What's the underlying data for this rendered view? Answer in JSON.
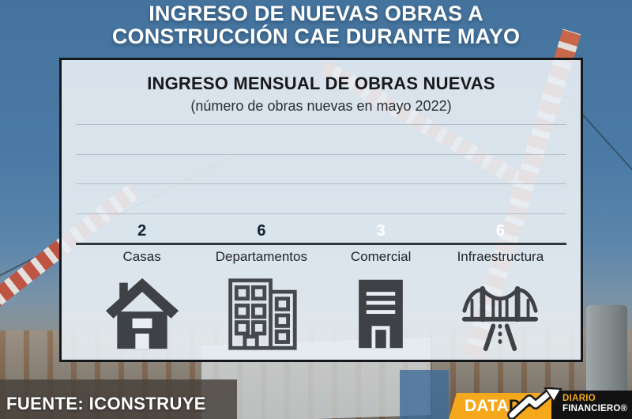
{
  "header": {
    "title_line1": "INGRESO DE NUEVAS OBRAS A",
    "title_line2": "CONSTRUCCIÓN CAE DURANTE MAYO"
  },
  "chart_data": {
    "type": "bar",
    "title": "INGRESO MENSUAL DE OBRAS NUEVAS",
    "subtitle": "(número de obras nuevas en mayo 2022)",
    "categories": [
      "Casas",
      "Departamentos",
      "Comercial",
      "Infraestructura"
    ],
    "values": [
      2,
      6,
      3,
      6
    ],
    "ylim": [
      0,
      6
    ],
    "gridline_values": [
      0,
      1.5,
      3,
      4.5,
      6
    ],
    "grid": true,
    "legend": false,
    "bar_colors": [
      "#0fb2ea",
      "#1d9ad8",
      "#0e74ba",
      "#14293e"
    ],
    "value_label_colors": [
      "#0f2133",
      "#0f2133",
      "#ffffff",
      "#ffffff"
    ],
    "icons": [
      "house-icon",
      "apartment-building-icon",
      "office-building-icon",
      "bridge-icon"
    ]
  },
  "footer": {
    "source": "FUENTE: ICONSTRUYE"
  },
  "logo": {
    "data_label": "DATA",
    "df_label": "DF",
    "diario": "DIARIO",
    "financiero": "FINANCIERO®",
    "accent_color": "#f6a81c"
  }
}
